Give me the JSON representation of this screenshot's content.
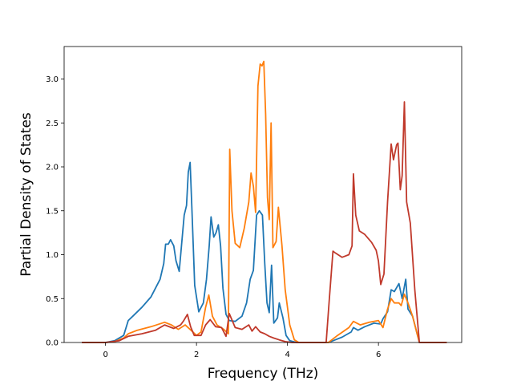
{
  "chart_data": {
    "type": "line",
    "title": "",
    "xlabel": "Frequency (THz)",
    "ylabel": "Partial Density of States",
    "xlim": [
      -0.91,
      7.83
    ],
    "ylim": [
      0.0,
      3.37
    ],
    "x_ticks": [
      0,
      2,
      4,
      6
    ],
    "x_tick_labels": [
      "0",
      "2",
      "4",
      "6"
    ],
    "y_ticks": [
      0.0,
      0.5,
      1.0,
      1.5,
      2.0,
      2.5,
      3.0
    ],
    "y_tick_labels": [
      "0.0",
      "0.5",
      "1.0",
      "1.5",
      "2.0",
      "2.5",
      "3.0"
    ],
    "grid": false,
    "legend": "none",
    "series": [
      {
        "color": "#1f77b4",
        "points": [
          [
            -0.52,
            0
          ],
          [
            0,
            0
          ],
          [
            0.2,
            0.02
          ],
          [
            0.4,
            0.08
          ],
          [
            0.5,
            0.25
          ],
          [
            0.6,
            0.3
          ],
          [
            0.8,
            0.4
          ],
          [
            1.0,
            0.52
          ],
          [
            1.2,
            0.72
          ],
          [
            1.28,
            0.9
          ],
          [
            1.32,
            1.12
          ],
          [
            1.38,
            1.12
          ],
          [
            1.43,
            1.17
          ],
          [
            1.5,
            1.1
          ],
          [
            1.55,
            0.93
          ],
          [
            1.62,
            0.81
          ],
          [
            1.67,
            1.1
          ],
          [
            1.73,
            1.45
          ],
          [
            1.78,
            1.56
          ],
          [
            1.82,
            1.94
          ],
          [
            1.86,
            2.05
          ],
          [
            1.9,
            1.5
          ],
          [
            1.96,
            0.65
          ],
          [
            2.05,
            0.35
          ],
          [
            2.15,
            0.45
          ],
          [
            2.22,
            0.72
          ],
          [
            2.28,
            1.1
          ],
          [
            2.32,
            1.43
          ],
          [
            2.38,
            1.2
          ],
          [
            2.43,
            1.25
          ],
          [
            2.48,
            1.34
          ],
          [
            2.53,
            1.1
          ],
          [
            2.58,
            0.62
          ],
          [
            2.65,
            0.32
          ],
          [
            2.72,
            0.25
          ],
          [
            2.85,
            0.24
          ],
          [
            3.0,
            0.3
          ],
          [
            3.1,
            0.45
          ],
          [
            3.18,
            0.72
          ],
          [
            3.25,
            0.82
          ],
          [
            3.32,
            1.45
          ],
          [
            3.38,
            1.5
          ],
          [
            3.45,
            1.45
          ],
          [
            3.5,
            0.9
          ],
          [
            3.55,
            0.45
          ],
          [
            3.6,
            0.34
          ],
          [
            3.65,
            0.88
          ],
          [
            3.7,
            0.22
          ],
          [
            3.78,
            0.28
          ],
          [
            3.82,
            0.45
          ],
          [
            3.9,
            0.28
          ],
          [
            3.97,
            0.08
          ],
          [
            4.05,
            0.02
          ],
          [
            4.2,
            0
          ],
          [
            4.9,
            0
          ],
          [
            5.0,
            0.02
          ],
          [
            5.2,
            0.06
          ],
          [
            5.4,
            0.12
          ],
          [
            5.45,
            0.17
          ],
          [
            5.55,
            0.14
          ],
          [
            5.7,
            0.18
          ],
          [
            5.9,
            0.22
          ],
          [
            6.05,
            0.21
          ],
          [
            6.1,
            0.27
          ],
          [
            6.2,
            0.35
          ],
          [
            6.28,
            0.6
          ],
          [
            6.35,
            0.58
          ],
          [
            6.45,
            0.67
          ],
          [
            6.52,
            0.5
          ],
          [
            6.6,
            0.72
          ],
          [
            6.65,
            0.38
          ],
          [
            6.75,
            0.3
          ],
          [
            6.9,
            0
          ],
          [
            7.5,
            0
          ]
        ]
      },
      {
        "color": "#ff7f0e",
        "points": [
          [
            -0.52,
            0
          ],
          [
            0,
            0
          ],
          [
            0.2,
            0.01
          ],
          [
            0.4,
            0.05
          ],
          [
            0.5,
            0.1
          ],
          [
            0.7,
            0.14
          ],
          [
            1.0,
            0.18
          ],
          [
            1.3,
            0.23
          ],
          [
            1.45,
            0.2
          ],
          [
            1.6,
            0.15
          ],
          [
            1.75,
            0.2
          ],
          [
            1.9,
            0.13
          ],
          [
            2.0,
            0.08
          ],
          [
            2.1,
            0.12
          ],
          [
            2.2,
            0.4
          ],
          [
            2.27,
            0.54
          ],
          [
            2.35,
            0.3
          ],
          [
            2.45,
            0.2
          ],
          [
            2.6,
            0.15
          ],
          [
            2.7,
            0.1
          ],
          [
            2.73,
            2.2
          ],
          [
            2.78,
            1.5
          ],
          [
            2.85,
            1.13
          ],
          [
            2.95,
            1.08
          ],
          [
            3.05,
            1.3
          ],
          [
            3.15,
            1.6
          ],
          [
            3.2,
            1.93
          ],
          [
            3.25,
            1.78
          ],
          [
            3.3,
            1.48
          ],
          [
            3.35,
            2.92
          ],
          [
            3.4,
            3.17
          ],
          [
            3.44,
            3.15
          ],
          [
            3.48,
            3.2
          ],
          [
            3.52,
            2.6
          ],
          [
            3.56,
            1.65
          ],
          [
            3.6,
            1.4
          ],
          [
            3.64,
            2.5
          ],
          [
            3.68,
            1.08
          ],
          [
            3.75,
            1.15
          ],
          [
            3.8,
            1.54
          ],
          [
            3.88,
            1.1
          ],
          [
            3.95,
            0.6
          ],
          [
            4.05,
            0.2
          ],
          [
            4.15,
            0.03
          ],
          [
            4.25,
            0
          ],
          [
            4.9,
            0
          ],
          [
            5.1,
            0.08
          ],
          [
            5.35,
            0.17
          ],
          [
            5.45,
            0.24
          ],
          [
            5.6,
            0.2
          ],
          [
            5.8,
            0.23
          ],
          [
            6.0,
            0.25
          ],
          [
            6.1,
            0.17
          ],
          [
            6.2,
            0.38
          ],
          [
            6.28,
            0.5
          ],
          [
            6.35,
            0.45
          ],
          [
            6.45,
            0.45
          ],
          [
            6.5,
            0.42
          ],
          [
            6.57,
            0.55
          ],
          [
            6.65,
            0.45
          ],
          [
            6.75,
            0.3
          ],
          [
            6.9,
            0
          ],
          [
            7.5,
            0
          ]
        ]
      },
      {
        "color": "#c0392b",
        "points": [
          [
            -0.52,
            0
          ],
          [
            0,
            0
          ],
          [
            0.3,
            0.02
          ],
          [
            0.5,
            0.07
          ],
          [
            0.8,
            0.1
          ],
          [
            1.1,
            0.14
          ],
          [
            1.3,
            0.2
          ],
          [
            1.5,
            0.16
          ],
          [
            1.65,
            0.2
          ],
          [
            1.72,
            0.25
          ],
          [
            1.8,
            0.32
          ],
          [
            1.87,
            0.18
          ],
          [
            1.95,
            0.08
          ],
          [
            2.1,
            0.08
          ],
          [
            2.2,
            0.2
          ],
          [
            2.3,
            0.26
          ],
          [
            2.42,
            0.18
          ],
          [
            2.55,
            0.17
          ],
          [
            2.65,
            0.07
          ],
          [
            2.72,
            0.33
          ],
          [
            2.85,
            0.17
          ],
          [
            3.0,
            0.15
          ],
          [
            3.15,
            0.2
          ],
          [
            3.22,
            0.13
          ],
          [
            3.3,
            0.18
          ],
          [
            3.4,
            0.12
          ],
          [
            3.5,
            0.1
          ],
          [
            3.6,
            0.07
          ],
          [
            3.7,
            0.05
          ],
          [
            3.82,
            0.03
          ],
          [
            3.95,
            0.01
          ],
          [
            4.1,
            0
          ],
          [
            4.85,
            0
          ],
          [
            4.92,
            0.5
          ],
          [
            5.0,
            1.04
          ],
          [
            5.05,
            1.02
          ],
          [
            5.2,
            0.97
          ],
          [
            5.35,
            1.0
          ],
          [
            5.42,
            1.1
          ],
          [
            5.45,
            1.92
          ],
          [
            5.5,
            1.45
          ],
          [
            5.58,
            1.27
          ],
          [
            5.7,
            1.23
          ],
          [
            5.85,
            1.14
          ],
          [
            5.95,
            1.05
          ],
          [
            6.0,
            0.93
          ],
          [
            6.05,
            0.66
          ],
          [
            6.12,
            0.78
          ],
          [
            6.2,
            1.6
          ],
          [
            6.28,
            2.26
          ],
          [
            6.33,
            2.08
          ],
          [
            6.4,
            2.25
          ],
          [
            6.43,
            2.27
          ],
          [
            6.48,
            1.74
          ],
          [
            6.52,
            1.9
          ],
          [
            6.57,
            2.74
          ],
          [
            6.62,
            1.6
          ],
          [
            6.7,
            1.36
          ],
          [
            6.8,
            0.6
          ],
          [
            6.9,
            0
          ],
          [
            7.5,
            0
          ]
        ]
      }
    ]
  }
}
